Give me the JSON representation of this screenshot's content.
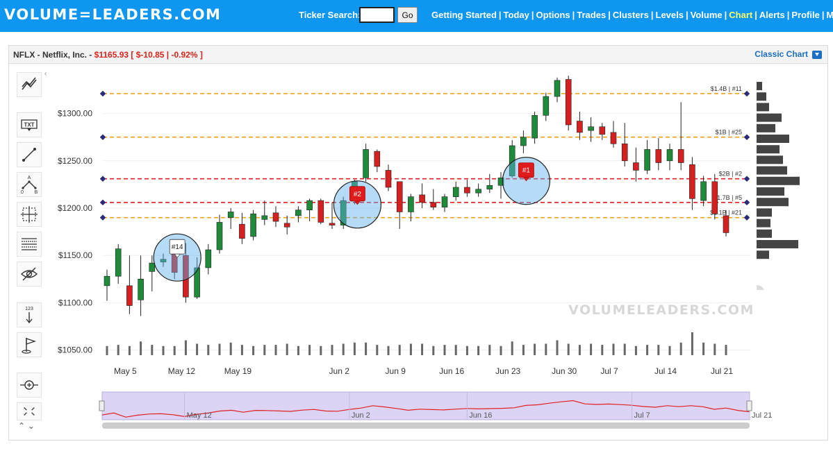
{
  "header": {
    "logo": "VOLUME=LEADERS.COM",
    "ticker_search_label": "Ticker Search:",
    "ticker_input_value": "",
    "go_label": "Go",
    "nav": [
      {
        "label": "Getting Started",
        "active": false
      },
      {
        "label": "Today",
        "active": false
      },
      {
        "label": "Options",
        "active": false
      },
      {
        "label": "Trades",
        "active": false
      },
      {
        "label": "Clusters",
        "active": false
      },
      {
        "label": "Levels",
        "active": false
      },
      {
        "label": "Volume",
        "active": false
      },
      {
        "label": "Chart",
        "active": true
      },
      {
        "label": "Alerts",
        "active": false
      },
      {
        "label": "Profile",
        "active": false
      },
      {
        "label": "My Subs",
        "active": false
      }
    ]
  },
  "panel": {
    "symbol_name": "NFLX - Netflix, Inc. - ",
    "price": "$1165.93",
    "change": "[ $-10.85 | -0.92% ]",
    "classic_chart_label": "Classic Chart"
  },
  "toolbar": [
    {
      "name": "trend-lines-tool-icon"
    },
    {
      "name": "text-tool-icon",
      "text": "TXT"
    },
    {
      "name": "line-tool-icon"
    },
    {
      "name": "pattern-tool-icon",
      "text": "A B 0"
    },
    {
      "name": "crosshair-box-tool-icon"
    },
    {
      "name": "fib-retracement-tool-icon"
    },
    {
      "name": "hide-drawings-icon"
    },
    {
      "name": "price-scale-tool-icon",
      "text": "123"
    },
    {
      "name": "flag-marker-tool-icon"
    },
    {
      "name": "zoom-crosshair-icon"
    },
    {
      "name": "fullscreen-icon"
    }
  ],
  "chart_data": {
    "type": "candlestick",
    "watermark": "VOLUMELEADERS.COM",
    "y_ticks": [
      "$1050.00",
      "$1100.00",
      "$1150.00",
      "$1200.00",
      "$1250.00",
      "$1300.00"
    ],
    "ylim": [
      1040,
      1345
    ],
    "x_ticks": [
      {
        "label": "May 5",
        "index": 2
      },
      {
        "label": "May 12",
        "index": 7
      },
      {
        "label": "May 19",
        "index": 12
      },
      {
        "label": "Jun 2",
        "index": 21
      },
      {
        "label": "Jun 9",
        "index": 26
      },
      {
        "label": "Jun 16",
        "index": 31
      },
      {
        "label": "Jun 23",
        "index": 36
      },
      {
        "label": "Jun 30",
        "index": 41
      },
      {
        "label": "Jul 7",
        "index": 45
      },
      {
        "label": "Jul 14",
        "index": 50
      },
      {
        "label": "Jul 21",
        "index": 55
      }
    ],
    "candles": [
      {
        "o": 1118,
        "h": 1135,
        "l": 1102,
        "c": 1128
      },
      {
        "o": 1128,
        "h": 1162,
        "l": 1120,
        "c": 1157
      },
      {
        "o": 1118,
        "h": 1150,
        "l": 1088,
        "c": 1097
      },
      {
        "o": 1103,
        "h": 1150,
        "l": 1086,
        "c": 1125
      },
      {
        "o": 1133,
        "h": 1150,
        "l": 1112,
        "c": 1142
      },
      {
        "o": 1143,
        "h": 1152,
        "l": 1138,
        "c": 1146
      },
      {
        "o": 1158,
        "h": 1163,
        "l": 1125,
        "c": 1132
      },
      {
        "o": 1150,
        "h": 1163,
        "l": 1100,
        "c": 1106
      },
      {
        "o": 1106,
        "h": 1148,
        "l": 1104,
        "c": 1137
      },
      {
        "o": 1137,
        "h": 1162,
        "l": 1130,
        "c": 1156
      },
      {
        "o": 1156,
        "h": 1193,
        "l": 1152,
        "c": 1185
      },
      {
        "o": 1190,
        "h": 1200,
        "l": 1178,
        "c": 1196
      },
      {
        "o": 1183,
        "h": 1195,
        "l": 1162,
        "c": 1168
      },
      {
        "o": 1170,
        "h": 1198,
        "l": 1166,
        "c": 1194
      },
      {
        "o": 1188,
        "h": 1208,
        "l": 1182,
        "c": 1192
      },
      {
        "o": 1195,
        "h": 1202,
        "l": 1180,
        "c": 1186
      },
      {
        "o": 1184,
        "h": 1192,
        "l": 1172,
        "c": 1180
      },
      {
        "o": 1192,
        "h": 1202,
        "l": 1185,
        "c": 1198
      },
      {
        "o": 1198,
        "h": 1210,
        "l": 1186,
        "c": 1208
      },
      {
        "o": 1208,
        "h": 1210,
        "l": 1183,
        "c": 1185
      },
      {
        "o": 1184,
        "h": 1206,
        "l": 1178,
        "c": 1182
      },
      {
        "o": 1182,
        "h": 1212,
        "l": 1178,
        "c": 1208
      },
      {
        "o": 1208,
        "h": 1230,
        "l": 1204,
        "c": 1228
      },
      {
        "o": 1232,
        "h": 1268,
        "l": 1228,
        "c": 1262
      },
      {
        "o": 1260,
        "h": 1262,
        "l": 1238,
        "c": 1244
      },
      {
        "o": 1240,
        "h": 1246,
        "l": 1218,
        "c": 1222
      },
      {
        "o": 1228,
        "h": 1228,
        "l": 1178,
        "c": 1196
      },
      {
        "o": 1196,
        "h": 1215,
        "l": 1186,
        "c": 1212
      },
      {
        "o": 1214,
        "h": 1226,
        "l": 1200,
        "c": 1206
      },
      {
        "o": 1206,
        "h": 1220,
        "l": 1198,
        "c": 1201
      },
      {
        "o": 1201,
        "h": 1215,
        "l": 1196,
        "c": 1212
      },
      {
        "o": 1212,
        "h": 1228,
        "l": 1208,
        "c": 1222
      },
      {
        "o": 1222,
        "h": 1230,
        "l": 1212,
        "c": 1216
      },
      {
        "o": 1216,
        "h": 1226,
        "l": 1212,
        "c": 1220
      },
      {
        "o": 1220,
        "h": 1236,
        "l": 1216,
        "c": 1224
      },
      {
        "o": 1224,
        "h": 1238,
        "l": 1210,
        "c": 1232
      },
      {
        "o": 1234,
        "h": 1272,
        "l": 1232,
        "c": 1266
      },
      {
        "o": 1266,
        "h": 1282,
        "l": 1258,
        "c": 1275
      },
      {
        "o": 1274,
        "h": 1302,
        "l": 1268,
        "c": 1298
      },
      {
        "o": 1298,
        "h": 1322,
        "l": 1292,
        "c": 1318
      },
      {
        "o": 1318,
        "h": 1338,
        "l": 1312,
        "c": 1335
      },
      {
        "o": 1336,
        "h": 1340,
        "l": 1282,
        "c": 1288
      },
      {
        "o": 1292,
        "h": 1302,
        "l": 1272,
        "c": 1280
      },
      {
        "o": 1282,
        "h": 1296,
        "l": 1270,
        "c": 1286
      },
      {
        "o": 1286,
        "h": 1290,
        "l": 1272,
        "c": 1278
      },
      {
        "o": 1280,
        "h": 1292,
        "l": 1264,
        "c": 1268
      },
      {
        "o": 1268,
        "h": 1290,
        "l": 1244,
        "c": 1250
      },
      {
        "o": 1248,
        "h": 1264,
        "l": 1228,
        "c": 1240
      },
      {
        "o": 1240,
        "h": 1272,
        "l": 1236,
        "c": 1262
      },
      {
        "o": 1262,
        "h": 1274,
        "l": 1240,
        "c": 1248
      },
      {
        "o": 1250,
        "h": 1268,
        "l": 1240,
        "c": 1262
      },
      {
        "o": 1262,
        "h": 1312,
        "l": 1240,
        "c": 1248
      },
      {
        "o": 1246,
        "h": 1254,
        "l": 1198,
        "c": 1210
      },
      {
        "o": 1208,
        "h": 1234,
        "l": 1202,
        "c": 1228
      },
      {
        "o": 1228,
        "h": 1236,
        "l": 1188,
        "c": 1194
      },
      {
        "o": 1192,
        "h": 1198,
        "l": 1170,
        "c": 1174
      }
    ],
    "volume": [
      0.4,
      0.45,
      0.4,
      0.6,
      0.45,
      0.4,
      0.4,
      0.65,
      0.5,
      0.45,
      0.5,
      0.55,
      0.45,
      0.4,
      0.45,
      0.45,
      0.5,
      0.4,
      0.45,
      0.4,
      0.45,
      0.5,
      0.55,
      0.55,
      0.45,
      0.4,
      0.45,
      0.5,
      0.5,
      0.4,
      0.45,
      0.45,
      0.4,
      0.4,
      0.45,
      0.4,
      0.6,
      0.45,
      0.5,
      0.5,
      0.65,
      0.5,
      0.45,
      0.5,
      0.45,
      0.5,
      0.5,
      0.4,
      0.45,
      0.45,
      0.4,
      0.55,
      1.0,
      0.55,
      0.5,
      0.45
    ],
    "levels": [
      {
        "price": 1321,
        "color": "#f0a020",
        "label": "$1.4B | #11"
      },
      {
        "price": 1275,
        "color": "#f0a020",
        "label": "$1B | #25"
      },
      {
        "price": 1231,
        "color": "#e02020",
        "label": "$2B | #2"
      },
      {
        "price": 1206,
        "color": "#e02020",
        "label": "$1.7B | #5"
      },
      {
        "price": 1190,
        "color": "#f0a020",
        "label": "$1.1B | #21"
      }
    ],
    "trade_markers": [
      {
        "label": "#14",
        "index": 6,
        "price": 1150,
        "style": "white"
      },
      {
        "label": "#2",
        "index": 22,
        "price": 1206,
        "style": "red"
      },
      {
        "label": "#1",
        "index": 37,
        "price": 1231,
        "style": "red"
      }
    ],
    "volume_profile": [
      0.08,
      0.14,
      0.18,
      0.36,
      0.27,
      0.47,
      0.33,
      0.38,
      0.44,
      0.62,
      0.4,
      0.46,
      0.22,
      0.2,
      0.22,
      0.6,
      0.18
    ],
    "navigator_ticks": [
      "May 12",
      "Jun 2",
      "Jun 16",
      "Jul 7",
      "Jul 21"
    ]
  }
}
